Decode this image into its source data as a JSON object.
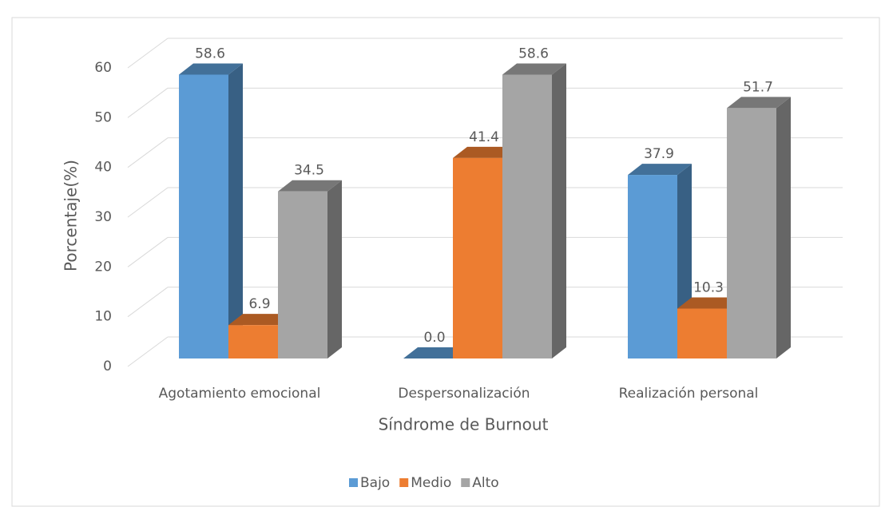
{
  "chart_data": {
    "type": "bar3d",
    "categories": [
      "Agotamiento emocional",
      "Despersonalización",
      "Realización personal"
    ],
    "series": [
      {
        "name": "Bajo",
        "color": "#5b9bd5",
        "values": [
          58.6,
          0.0,
          37.9
        ],
        "value_labels": [
          "58.6",
          "0.0",
          "37.9"
        ]
      },
      {
        "name": "Medio",
        "color": "#ed7d31",
        "values": [
          6.9,
          41.4,
          10.3
        ],
        "value_labels": [
          "6.9",
          "41.4",
          "10.3"
        ]
      },
      {
        "name": "Alto",
        "color": "#a5a5a5",
        "values": [
          34.5,
          58.6,
          51.7
        ],
        "value_labels": [
          "34.5",
          "58.6",
          "51.7"
        ]
      }
    ],
    "ylim": [
      0,
      60
    ],
    "yticks": [
      0,
      10,
      20,
      30,
      40,
      50,
      60
    ],
    "y_label": "Porcentaje(%)",
    "x_label": "Síndrome de Burnout",
    "grid": true,
    "legend": "bottom"
  }
}
